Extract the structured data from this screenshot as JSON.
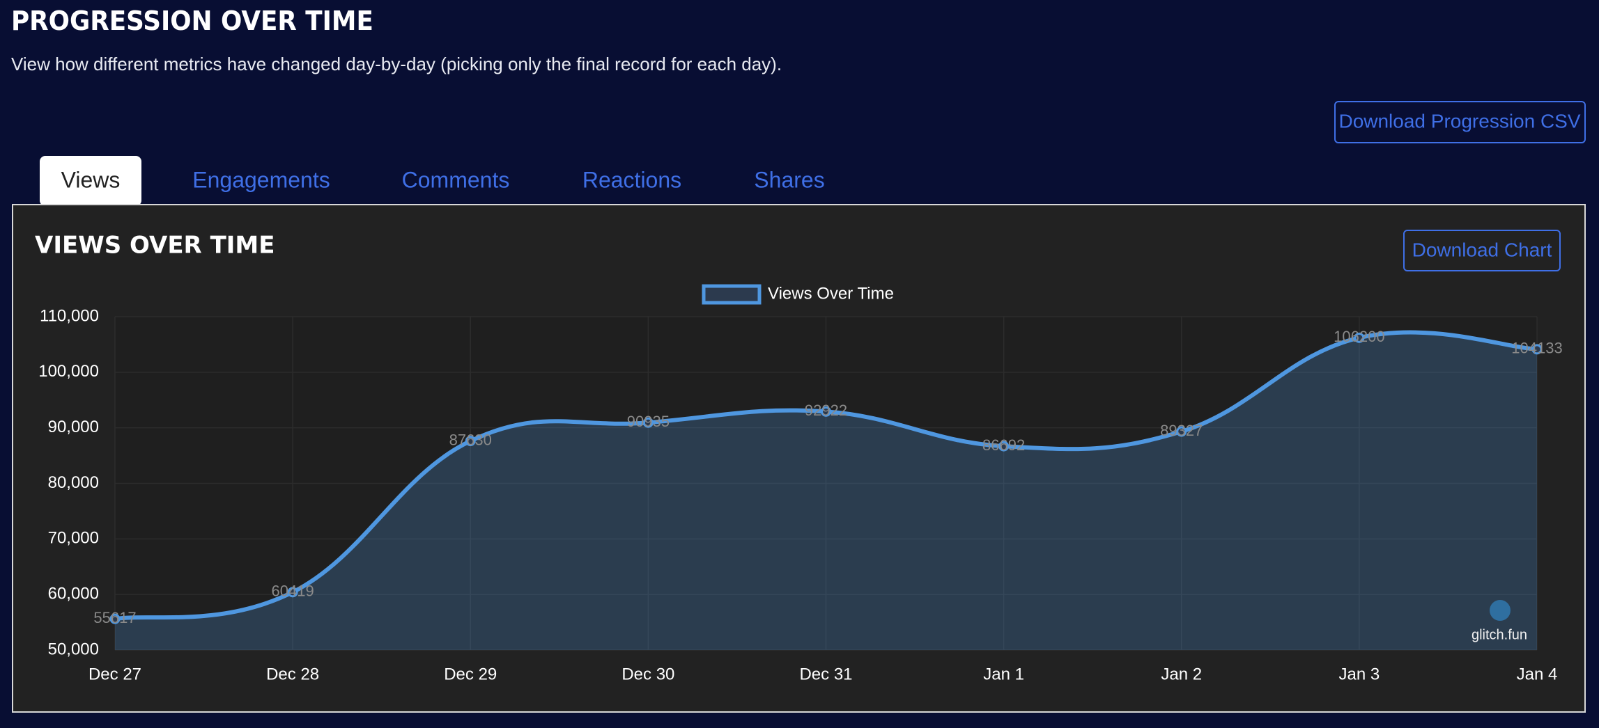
{
  "header": {
    "title": "PROGRESSION OVER TIME",
    "subtitle": "View how different metrics have changed day-by-day (picking only the final record for each day).",
    "download_button": "Download Progression CSV"
  },
  "tabs": [
    "Views",
    "Engagements",
    "Comments",
    "Reactions",
    "Shares"
  ],
  "card": {
    "download_button": "Download Chart",
    "watermark": "glitch.fun"
  },
  "chart_data": {
    "type": "line",
    "title": "VIEWS OVER TIME",
    "categories": [
      "Dec 27",
      "Dec 28",
      "Dec 29",
      "Dec 30",
      "Dec 31",
      "Jan 1",
      "Jan 2",
      "Jan 3",
      "Jan 4"
    ],
    "series": [
      {
        "name": "Views Over Time",
        "color": "#4f97e0",
        "values": [
          55617,
          60419,
          87630,
          90935,
          92922,
          86692,
          89327,
          106200,
          104133
        ]
      }
    ],
    "ylim": [
      50000,
      110000
    ],
    "yticks": [
      {
        "value": 50000,
        "label": "50,000"
      },
      {
        "value": 60000,
        "label": "60,000"
      },
      {
        "value": 70000,
        "label": "70,000"
      },
      {
        "value": 80000,
        "label": "80,000"
      },
      {
        "value": 90000,
        "label": "90,000"
      },
      {
        "value": 100000,
        "label": "100,000"
      },
      {
        "value": 110000,
        "label": "110,000"
      }
    ],
    "grid": true,
    "legend": "top",
    "fill": true,
    "data_labels": true
  }
}
